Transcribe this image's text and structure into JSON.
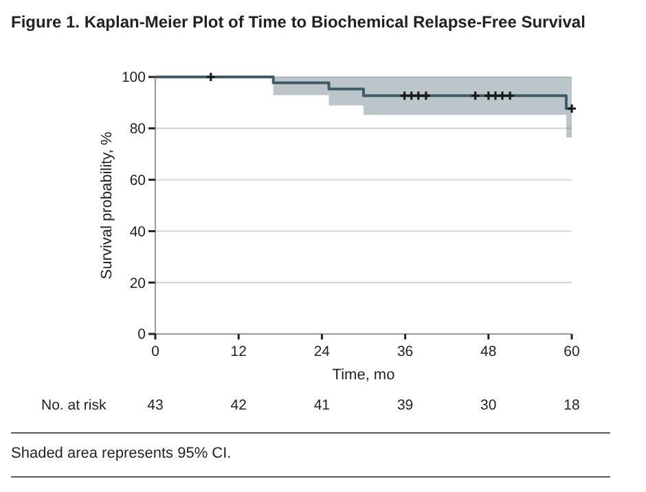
{
  "chart_data": {
    "type": "step",
    "title": "Figure 1. Kaplan-Meier Plot of Time to Biochemical Relapse-Free Survival",
    "xlabel": "Time, mo",
    "ylabel": "Survival probability, %",
    "xlim": [
      0,
      60
    ],
    "xticks": [
      0,
      12,
      24,
      36,
      48,
      60
    ],
    "ylim": [
      0,
      100
    ],
    "yticks": [
      0,
      20,
      40,
      60,
      80,
      100
    ],
    "grid": "y",
    "series": [
      {
        "type": "step",
        "color": "#3f5b66",
        "x": [
          0,
          17,
          25,
          30,
          59.2,
          60
        ],
        "values": [
          100,
          97.7,
          95.3,
          92.7,
          87.7,
          87.7
        ],
        "lower": [
          100,
          92.9,
          88.9,
          85.2,
          76.5,
          76.5
        ],
        "upper": [
          100,
          100,
          100,
          100,
          100,
          100
        ],
        "marker": "none"
      },
      {
        "type": "scatter",
        "color": "#1a1a1a",
        "marker": "cross",
        "x": [
          8,
          35.9,
          36.9,
          37.9,
          39,
          46.1,
          48,
          49,
          50,
          51.1,
          60
        ],
        "values": [
          100,
          92.7,
          92.7,
          92.7,
          92.7,
          92.7,
          92.7,
          92.7,
          92.7,
          92.7,
          87.7
        ]
      }
    ],
    "annotations": [
      "No. at risk",
      "43",
      "42",
      "41",
      "39",
      "30",
      "18",
      "Shaded area represents 95% CI."
    ]
  }
}
